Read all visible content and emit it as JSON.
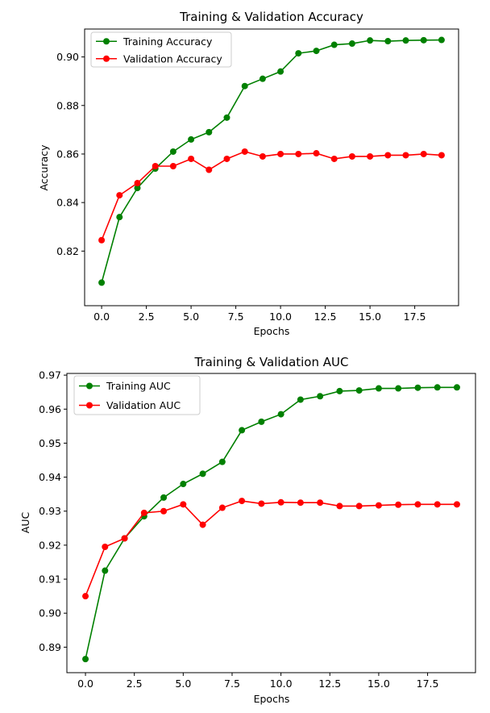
{
  "chart_data": [
    {
      "type": "line",
      "title": "Training & Validation Accuracy",
      "xlabel": "Epochs",
      "ylabel": "Accuracy",
      "xlim": [
        -0.95,
        19.95
      ],
      "ylim": [
        0.7975,
        0.9115
      ],
      "xticks": [
        0,
        2.5,
        5,
        7.5,
        10,
        12.5,
        15,
        17.5
      ],
      "xtick_labels": [
        "0.0",
        "2.5",
        "5.0",
        "7.5",
        "10.0",
        "12.5",
        "15.0",
        "17.5"
      ],
      "yticks": [
        0.82,
        0.84,
        0.86,
        0.88,
        0.9
      ],
      "ytick_labels": [
        "0.82",
        "0.84",
        "0.86",
        "0.88",
        "0.90"
      ],
      "grid": false,
      "legend_position": "upper-left",
      "x": [
        0,
        1,
        2,
        3,
        4,
        5,
        6,
        7,
        8,
        9,
        10,
        11,
        12,
        13,
        14,
        15,
        16,
        17,
        18,
        19
      ],
      "series": [
        {
          "name": "Training Accuracy",
          "color": "#008000",
          "values": [
            0.807,
            0.834,
            0.846,
            0.854,
            0.861,
            0.866,
            0.869,
            0.875,
            0.888,
            0.891,
            0.894,
            0.9015,
            0.9025,
            0.905,
            0.9055,
            0.9068,
            0.9065,
            0.9068,
            0.9069,
            0.907
          ]
        },
        {
          "name": "Validation Accuracy",
          "color": "#ff0000",
          "values": [
            0.8245,
            0.843,
            0.848,
            0.855,
            0.855,
            0.858,
            0.8535,
            0.858,
            0.861,
            0.859,
            0.86,
            0.86,
            0.8603,
            0.858,
            0.859,
            0.859,
            0.8595,
            0.8595,
            0.86,
            0.8595
          ]
        }
      ]
    },
    {
      "type": "line",
      "title": "Training & Validation AUC",
      "xlabel": "Epochs",
      "ylabel": "AUC",
      "xlim": [
        -0.95,
        19.95
      ],
      "ylim": [
        0.8825,
        0.9705
      ],
      "xticks": [
        0,
        2.5,
        5,
        7.5,
        10,
        12.5,
        15,
        17.5
      ],
      "xtick_labels": [
        "0.0",
        "2.5",
        "5.0",
        "7.5",
        "10.0",
        "12.5",
        "15.0",
        "17.5"
      ],
      "yticks": [
        0.89,
        0.9,
        0.91,
        0.92,
        0.93,
        0.94,
        0.95,
        0.96,
        0.97
      ],
      "ytick_labels": [
        "0.89",
        "0.90",
        "0.91",
        "0.92",
        "0.93",
        "0.94",
        "0.95",
        "0.96",
        "0.97"
      ],
      "grid": false,
      "legend_position": "upper-left",
      "x": [
        0,
        1,
        2,
        3,
        4,
        5,
        6,
        7,
        8,
        9,
        10,
        11,
        12,
        13,
        14,
        15,
        16,
        17,
        18,
        19
      ],
      "series": [
        {
          "name": "Training AUC",
          "color": "#008000",
          "values": [
            0.8865,
            0.9125,
            0.922,
            0.9285,
            0.934,
            0.938,
            0.941,
            0.9445,
            0.9538,
            0.9563,
            0.9585,
            0.9628,
            0.9638,
            0.9653,
            0.9655,
            0.9661,
            0.9661,
            0.9663,
            0.9664,
            0.9664
          ]
        },
        {
          "name": "Validation AUC",
          "color": "#ff0000",
          "values": [
            0.905,
            0.9195,
            0.922,
            0.9295,
            0.93,
            0.932,
            0.926,
            0.931,
            0.933,
            0.9322,
            0.9326,
            0.9325,
            0.9325,
            0.9315,
            0.9315,
            0.9317,
            0.9319,
            0.932,
            0.932,
            0.932
          ]
        }
      ]
    }
  ]
}
